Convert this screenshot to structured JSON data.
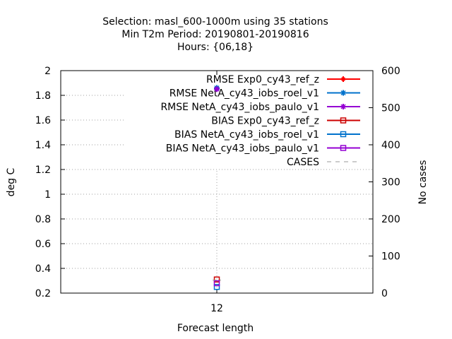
{
  "chart_data": {
    "type": "line",
    "title_lines": [
      "Selection: masl_600-1000m using    35 stations",
      "Min T2m   Period: 20190801-20190816",
      "Hours: {06,18}"
    ],
    "xlabel": "Forecast length",
    "ylabel": "deg C",
    "y2label": "No cases",
    "x_categories": [
      "12"
    ],
    "ylim": [
      0.2,
      2.0
    ],
    "yticks": [
      0.2,
      0.4,
      0.6,
      0.8,
      1.0,
      1.2,
      1.4,
      1.6,
      1.8,
      2.0
    ],
    "ytick_labels": [
      "0.2",
      "0.4",
      "0.6",
      "0.8",
      "1",
      "1.2",
      "1.4",
      "1.6",
      "1.8",
      "2"
    ],
    "y2lim": [
      0,
      600
    ],
    "y2ticks": [
      0,
      100,
      200,
      300,
      400,
      500,
      600
    ],
    "y2tick_labels": [
      "0",
      "100",
      "200",
      "300",
      "400",
      "500",
      "600"
    ],
    "grid": true,
    "legend_position": "top-right",
    "series": [
      {
        "name": "RMSE Exp0_cy43_ref_z",
        "x": [
          "12"
        ],
        "values": [
          1.86
        ],
        "color": "#ff0000",
        "marker": "plus-filled",
        "axis": "y"
      },
      {
        "name": "RMSE NetA_cy43_iobs_roel_v1",
        "x": [
          "12"
        ],
        "values": [
          1.86
        ],
        "color": "#0072cc",
        "marker": "star",
        "axis": "y"
      },
      {
        "name": "RMSE NetA_cy43_iobs_paulo_v1",
        "x": [
          "12"
        ],
        "values": [
          1.85
        ],
        "color": "#9400d3",
        "marker": "star",
        "axis": "y"
      },
      {
        "name": "BIAS Exp0_cy43_ref_z",
        "x": [
          "12"
        ],
        "values": [
          0.31
        ],
        "color": "#cc0000",
        "marker": "square-open",
        "axis": "y"
      },
      {
        "name": "BIAS NetA_cy43_iobs_roel_v1",
        "x": [
          "12"
        ],
        "values": [
          0.25
        ],
        "color": "#0072cc",
        "marker": "square-open",
        "axis": "y"
      },
      {
        "name": "BIAS NetA_cy43_iobs_paulo_v1",
        "x": [
          "12"
        ],
        "values": [
          0.28
        ],
        "color": "#9400d3",
        "marker": "square-open",
        "axis": "y"
      },
      {
        "name": "CASES",
        "x": [
          "12"
        ],
        "values": [
          35
        ],
        "color": "#999999",
        "marker": "dash",
        "axis": "y2"
      }
    ]
  }
}
